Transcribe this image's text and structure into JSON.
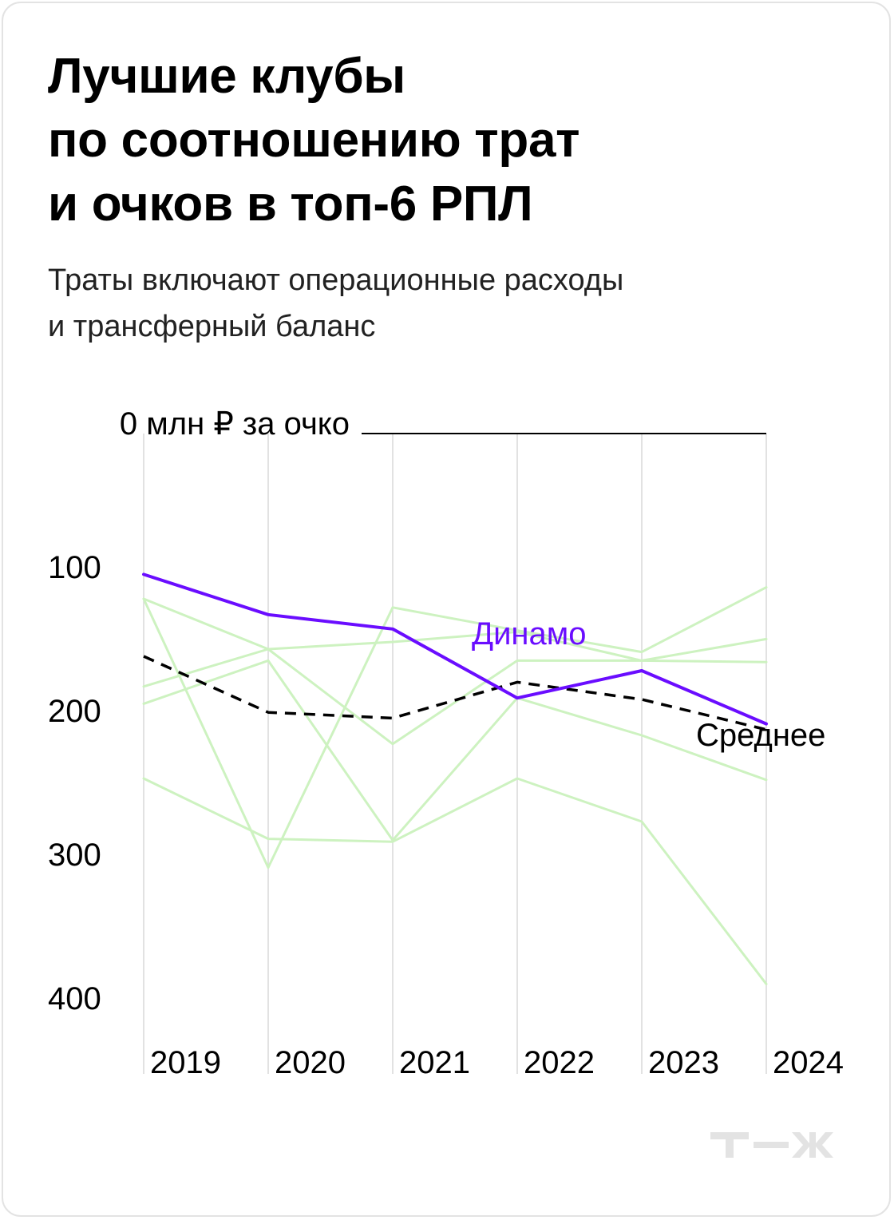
{
  "title_lines": [
    "Лучшие клубы",
    "по соотношению трат",
    "и очков в топ-6 РПЛ"
  ],
  "subtitle_lines": [
    "Траты включают операционные расходы",
    "и трансферный баланс"
  ],
  "chart_data": {
    "type": "line",
    "title": "Лучшие клубы по соотношению трат и очков в топ-6 РПЛ",
    "subtitle": "Траты включают операционные расходы и трансферный баланс",
    "x": [
      2019,
      2020,
      2021,
      2022,
      2023,
      2024
    ],
    "x_tick_labels": [
      "2019",
      "2020",
      "2021",
      "2022",
      "2023",
      "2024"
    ],
    "y_tick_labels": [
      "0 млн ₽ за очко",
      "100",
      "200",
      "300",
      "400"
    ],
    "y_ticks": [
      0,
      100,
      200,
      300,
      400
    ],
    "ylim": [
      0,
      400
    ],
    "y_inverted": true,
    "y_unit": "млн ₽ за очко",
    "grid": "vertical",
    "highlight": {
      "name": "Динамо",
      "color": "#6a0dff",
      "values": [
        98,
        126,
        136,
        184,
        165,
        202
      ]
    },
    "average": {
      "name": "Среднее",
      "color": "#000000",
      "style": "dashed",
      "values": [
        155,
        194,
        198,
        173,
        185,
        206
      ]
    },
    "other_series_color": "#cdf2c0",
    "other_series": [
      {
        "values": [
          115,
          150,
          216,
          158,
          158,
          159
        ]
      },
      {
        "values": [
          115,
          302,
          121,
          137,
          152,
          107
        ]
      },
      {
        "values": [
          176,
          150,
          145,
          138,
          158,
          143
        ]
      },
      {
        "values": [
          188,
          158,
          283,
          184,
          210,
          241
        ]
      },
      {
        "values": [
          240,
          282,
          284,
          240,
          270,
          383
        ]
      }
    ]
  },
  "logo": {
    "text": "Т—Ж",
    "color": "#e3e3e3"
  }
}
